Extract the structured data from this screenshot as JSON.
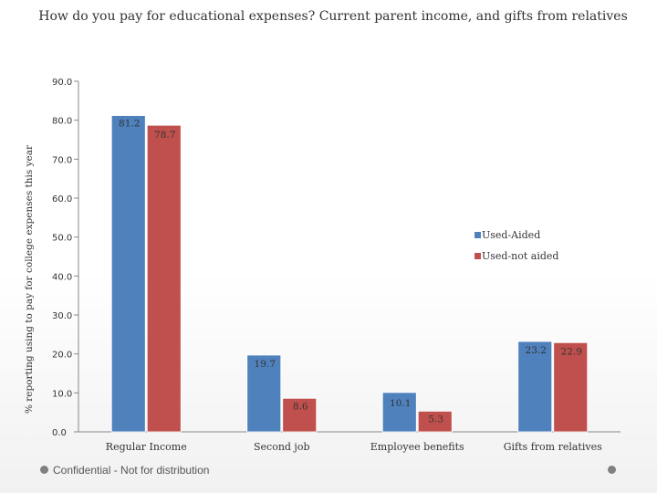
{
  "title": "How do you pay for educational expenses?  Current parent income, and gifts from relatives",
  "footer": "Confidential - Not for distribution",
  "chart_data": {
    "type": "bar",
    "categories": [
      "Regular Income",
      "Second job",
      "Employee benefits",
      "Gifts from relatives"
    ],
    "series": [
      {
        "name": "Used-Aided",
        "color": "#4f81bd",
        "values": [
          81.2,
          19.7,
          10.1,
          23.2
        ],
        "labels": [
          "81.2",
          "19.7",
          "10.1",
          "23.2"
        ]
      },
      {
        "name": "Used-not aided",
        "color": "#c0504d",
        "values": [
          78.7,
          8.6,
          5.3,
          22.9
        ],
        "labels": [
          "78.7",
          "8.6",
          "5.3",
          "22.9"
        ]
      }
    ],
    "ylabel": "% reporting using  to pay for college expenses this year",
    "ylim": [
      0,
      90
    ],
    "yticks": [
      "0.0",
      "10.0",
      "20.0",
      "30.0",
      "40.0",
      "50.0",
      "60.0",
      "70.0",
      "80.0",
      "90.0"
    ],
    "grid": false,
    "legend": "right"
  }
}
